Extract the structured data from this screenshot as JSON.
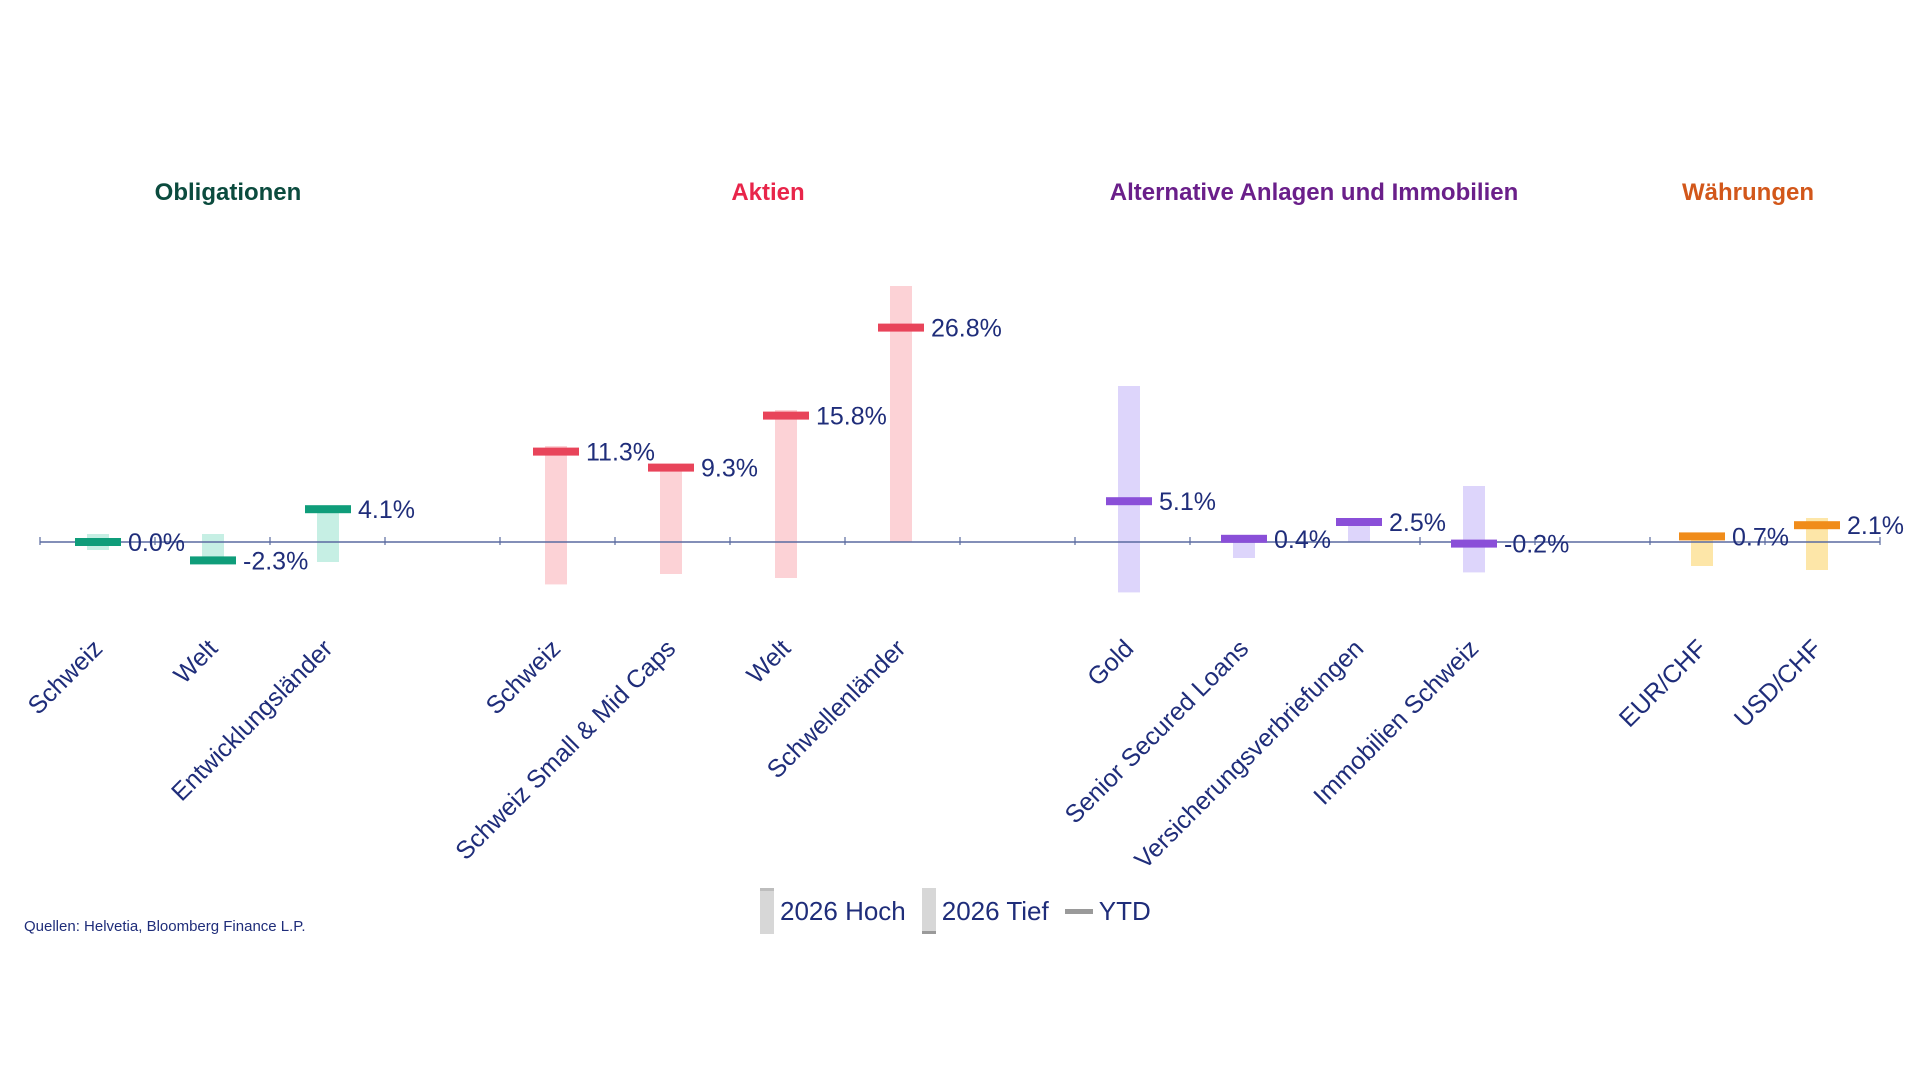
{
  "source": "Quellen: Helvetia, Bloomberg Finance L.P.",
  "legend": {
    "high": "2026 Hoch",
    "low": "2026 Tief",
    "ytd": "YTD"
  },
  "chart_data": {
    "type": "range-bar with YTD marker",
    "unit": "%",
    "grid": false,
    "legend_position": "bottom-center",
    "y_range": [
      -8,
      37
    ],
    "groups": [
      {
        "name": "Obligationen",
        "color": "#0f9d7a",
        "title_color": "#0b4b3e",
        "light_color": "#c6efe4",
        "items": [
          {
            "category": "Schweiz",
            "ytd": 0.0,
            "high": 1.0,
            "low": -1.0,
            "label": "0.0%"
          },
          {
            "category": "Welt",
            "ytd": -2.3,
            "high": 1.0,
            "low": -2.3,
            "label": "-2.3%"
          },
          {
            "category": "Entwicklungsländer",
            "ytd": 4.1,
            "high": 4.1,
            "low": -2.5,
            "label": "4.1%"
          }
        ]
      },
      {
        "name": "Aktien",
        "color": "#e8445a",
        "title_color": "#e8254a",
        "light_color": "#fcd2d6",
        "items": [
          {
            "category": "Schweiz",
            "ytd": 11.3,
            "high": 12.0,
            "low": -5.3,
            "label": "11.3%"
          },
          {
            "category": "Schweiz Small & Mid Caps",
            "ytd": 9.3,
            "high": 9.3,
            "low": -4.0,
            "label": "9.3%"
          },
          {
            "category": "Welt",
            "ytd": 15.8,
            "high": 16.5,
            "low": -4.5,
            "label": "15.8%"
          },
          {
            "category": "Schwellenländer",
            "ytd": 26.8,
            "high": 32.0,
            "low": 0.0,
            "label": "26.8%"
          }
        ]
      },
      {
        "name": "Alternative Anlagen und Immobilien",
        "color": "#8a4fd8",
        "title_color": "#6a1f8a",
        "light_color": "#ddd5fb",
        "items": [
          {
            "category": "Gold",
            "ytd": 5.1,
            "high": 19.5,
            "low": -6.3,
            "label": "5.1%"
          },
          {
            "category": "Senior Secured Loans",
            "ytd": 0.4,
            "high": 0.4,
            "low": -2.0,
            "label": "0.4%"
          },
          {
            "category": "Versicherungsverbriefungen",
            "ytd": 2.5,
            "high": 2.5,
            "low": 0.0,
            "label": "2.5%"
          },
          {
            "category": "Immobilien Schweiz",
            "ytd": -0.2,
            "high": 7.0,
            "low": -3.8,
            "label": "-0.2%"
          }
        ]
      },
      {
        "name": "Währungen",
        "color": "#f08c1a",
        "title_color": "#d2571a",
        "light_color": "#fde6a8",
        "items": [
          {
            "category": "EUR/CHF",
            "ytd": 0.7,
            "high": 0.7,
            "low": -3.0,
            "label": "0.7%"
          },
          {
            "category": "USD/CHF",
            "ytd": 2.1,
            "high": 3.0,
            "low": -3.5,
            "label": "2.1%"
          }
        ]
      }
    ]
  }
}
